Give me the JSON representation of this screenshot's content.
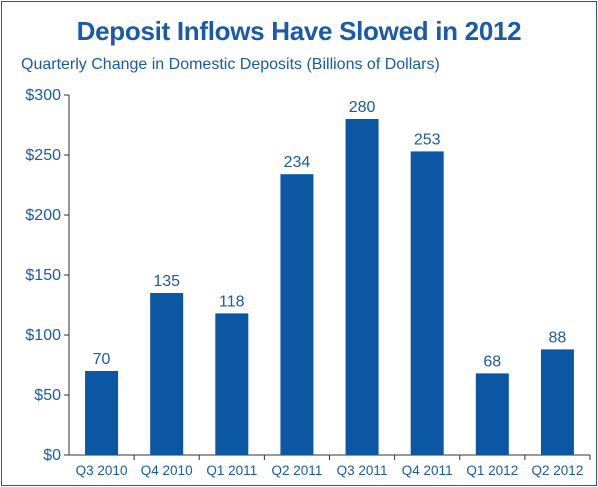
{
  "chart_data": {
    "type": "bar",
    "title": "Deposit Inflows Have Slowed in 2012",
    "subtitle": "Quarterly Change in Domestic Deposits (Billions of Dollars)",
    "categories": [
      "Q3 2010",
      "Q4 2010",
      "Q1 2011",
      "Q2 2011",
      "Q3 2011",
      "Q4 2011",
      "Q1 2012",
      "Q2 2012"
    ],
    "values": [
      70,
      135,
      118,
      234,
      280,
      253,
      68,
      88
    ],
    "data_labels": [
      "70",
      "135",
      "118",
      "234",
      "280",
      "253",
      "68",
      "88"
    ],
    "ylim": [
      0,
      300
    ],
    "yticks": [
      0,
      50,
      100,
      150,
      200,
      250,
      300
    ],
    "ytick_labels": [
      "$0",
      "$50",
      "$100",
      "$150",
      "$200",
      "$250",
      "$300"
    ],
    "grid": false,
    "colors": {
      "bar": "#0b57a4",
      "text": "#1a5aa8",
      "axis": "#333333",
      "frame": "#1f5aa6"
    }
  }
}
